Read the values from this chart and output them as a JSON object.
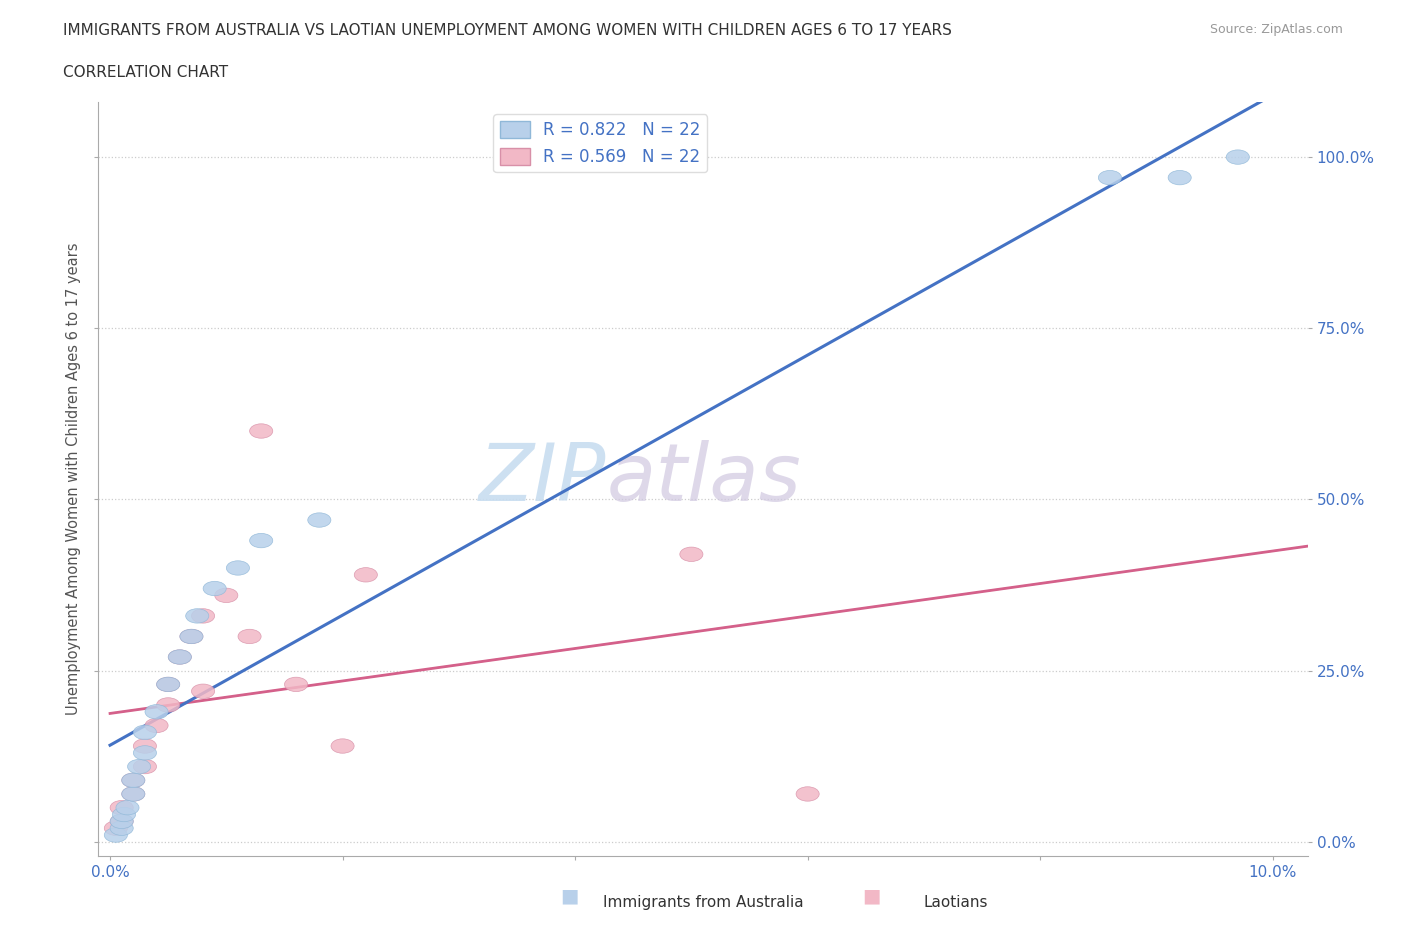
{
  "title": "IMMIGRANTS FROM AUSTRALIA VS LAOTIAN UNEMPLOYMENT AMONG WOMEN WITH CHILDREN AGES 6 TO 17 YEARS",
  "subtitle": "CORRELATION CHART",
  "source": "Source: ZipAtlas.com",
  "ylabel": "Unemployment Among Women with Children Ages 6 to 17 years",
  "xlim": [
    0.0,
    0.1
  ],
  "ylim": [
    0.0,
    1.05
  ],
  "x_tick_positions": [
    0.0,
    0.02,
    0.04,
    0.06,
    0.08,
    0.1
  ],
  "x_tick_labels": [
    "0.0%",
    "",
    "",
    "",
    "",
    "10.0%"
  ],
  "y_tick_positions": [
    0.0,
    0.25,
    0.5,
    0.75,
    1.0
  ],
  "y_tick_labels": [
    "0.0%",
    "25.0%",
    "50.0%",
    "75.0%",
    "100.0%"
  ],
  "R_blue": 0.822,
  "N_blue": 22,
  "R_pink": 0.569,
  "N_pink": 22,
  "blue_fill": "#b8d0ea",
  "blue_line": "#4472c4",
  "pink_fill": "#f2b8c6",
  "pink_line": "#d4608a",
  "pink_dash": "#e8a0b8",
  "watermark_color": "#c8ddf0",
  "aus_x": [
    0.0005,
    0.001,
    0.001,
    0.0012,
    0.0015,
    0.002,
    0.002,
    0.0025,
    0.003,
    0.003,
    0.004,
    0.005,
    0.006,
    0.007,
    0.0075,
    0.009,
    0.011,
    0.013,
    0.018,
    0.086,
    0.092,
    0.097
  ],
  "aus_y": [
    0.01,
    0.02,
    0.03,
    0.04,
    0.05,
    0.07,
    0.09,
    0.11,
    0.13,
    0.16,
    0.19,
    0.23,
    0.27,
    0.3,
    0.33,
    0.37,
    0.4,
    0.44,
    0.47,
    0.97,
    0.97,
    1.0
  ],
  "lao_x": [
    0.0005,
    0.001,
    0.001,
    0.002,
    0.002,
    0.003,
    0.003,
    0.004,
    0.005,
    0.005,
    0.006,
    0.007,
    0.008,
    0.008,
    0.01,
    0.012,
    0.013,
    0.016,
    0.02,
    0.022,
    0.05,
    0.06
  ],
  "lao_y": [
    0.02,
    0.03,
    0.05,
    0.07,
    0.09,
    0.11,
    0.14,
    0.17,
    0.2,
    0.23,
    0.27,
    0.3,
    0.22,
    0.33,
    0.36,
    0.3,
    0.6,
    0.23,
    0.14,
    0.39,
    0.42,
    0.07
  ]
}
